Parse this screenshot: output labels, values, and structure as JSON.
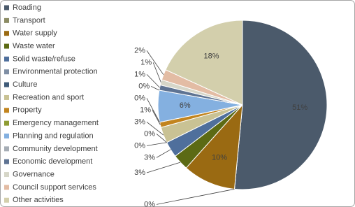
{
  "chart_data": {
    "type": "pie",
    "categories": [
      "Roading",
      "Transport",
      "Water supply",
      "Waste water",
      "Solid waste/refuse",
      "Environmental protection",
      "Culture",
      "Recreation and sport",
      "Property",
      "Emergency management",
      "Planning and regulation",
      "Community development",
      "Economic development",
      "Governance",
      "Council support services",
      "Other activities"
    ],
    "values": [
      51,
      0,
      10,
      3,
      3,
      0,
      0,
      3,
      1,
      0,
      6,
      0,
      1,
      1,
      2,
      18
    ],
    "value_labels": [
      "51%",
      "0%",
      "10%",
      "3%",
      "3%",
      "0%",
      "0%",
      "3%",
      "1%",
      "0%",
      "6%",
      "0%",
      "1%",
      "1%",
      "2%",
      "18%"
    ],
    "colors": [
      "#4b5a6b",
      "#8c8c64",
      "#9a6a12",
      "#5c6a14",
      "#4f6f9c",
      "#7f8ea4",
      "#3f5b78",
      "#c9c294",
      "#c2841e",
      "#8e9c32",
      "#84b0e0",
      "#a6adb5",
      "#5e7392",
      "#d6d6c8",
      "#e3bca4",
      "#d3cfac"
    ],
    "legend": "left"
  }
}
